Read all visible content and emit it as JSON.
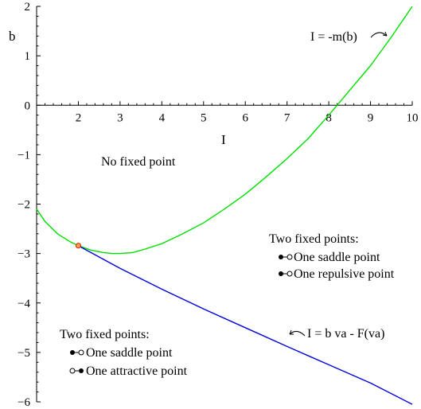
{
  "chart_data": {
    "type": "line",
    "xlabel": "I",
    "ylabel": "b",
    "xlim": [
      1,
      10
    ],
    "ylim": [
      -6,
      2
    ],
    "xticks": [
      2,
      3,
      4,
      5,
      6,
      7,
      8,
      9,
      10
    ],
    "yticks": [
      2,
      1,
      0,
      -1,
      -2,
      -3,
      -4,
      -5,
      -6
    ],
    "xtick_labels": [
      "2",
      "3",
      "4",
      "5",
      "6",
      "7",
      "8",
      "9",
      "10"
    ],
    "ytick_labels": [
      "2",
      "1",
      "0",
      "−1",
      "−2",
      "−3",
      "−4",
      "−5",
      "−6"
    ],
    "series": [
      {
        "name": "I = -m(b)",
        "color": "#00e000",
        "x": [
          1.0,
          1.2,
          1.5,
          1.8,
          2.0,
          2.3,
          2.6,
          2.8,
          3.0,
          3.3,
          3.6,
          4.0,
          4.5,
          5.0,
          5.5,
          6.0,
          6.5,
          7.0,
          7.5,
          8.0,
          8.5,
          9.0,
          9.5,
          10.0
        ],
        "y": [
          -2.1,
          -2.35,
          -2.6,
          -2.76,
          -2.84,
          -2.93,
          -2.98,
          -3.0,
          -3.0,
          -2.98,
          -2.91,
          -2.8,
          -2.6,
          -2.38,
          -2.1,
          -1.8,
          -1.45,
          -1.08,
          -0.68,
          -0.2,
          0.3,
          0.8,
          1.38,
          2.0
        ]
      },
      {
        "name": "I = b va - F(va)",
        "color": "#0000dd",
        "x": [
          2.0,
          3.0,
          4.0,
          5.0,
          6.0,
          7.0,
          8.0,
          9.0,
          10.0
        ],
        "y": [
          -2.84,
          -3.3,
          -3.72,
          -4.12,
          -4.5,
          -4.88,
          -5.25,
          -5.62,
          -6.05
        ]
      }
    ],
    "marker": {
      "x": 2.0,
      "y": -2.84,
      "color": "#dd3300"
    },
    "annotations": [
      {
        "id": "curve_label_green",
        "text": "I = -m(b)"
      },
      {
        "id": "curve_label_blue",
        "text": "I = b va - F(va)"
      },
      {
        "id": "region_none",
        "text": "No fixed point"
      },
      {
        "id": "region_right_title",
        "text": "Two fixed points:"
      },
      {
        "id": "region_right_item1",
        "text": "One saddle point"
      },
      {
        "id": "region_right_item2",
        "text": "One repulsive point"
      },
      {
        "id": "region_left_title",
        "text": "Two fixed points:"
      },
      {
        "id": "region_left_item1",
        "text": "One saddle point"
      },
      {
        "id": "region_left_item2",
        "text": "One attractive point"
      }
    ],
    "grid": false
  }
}
